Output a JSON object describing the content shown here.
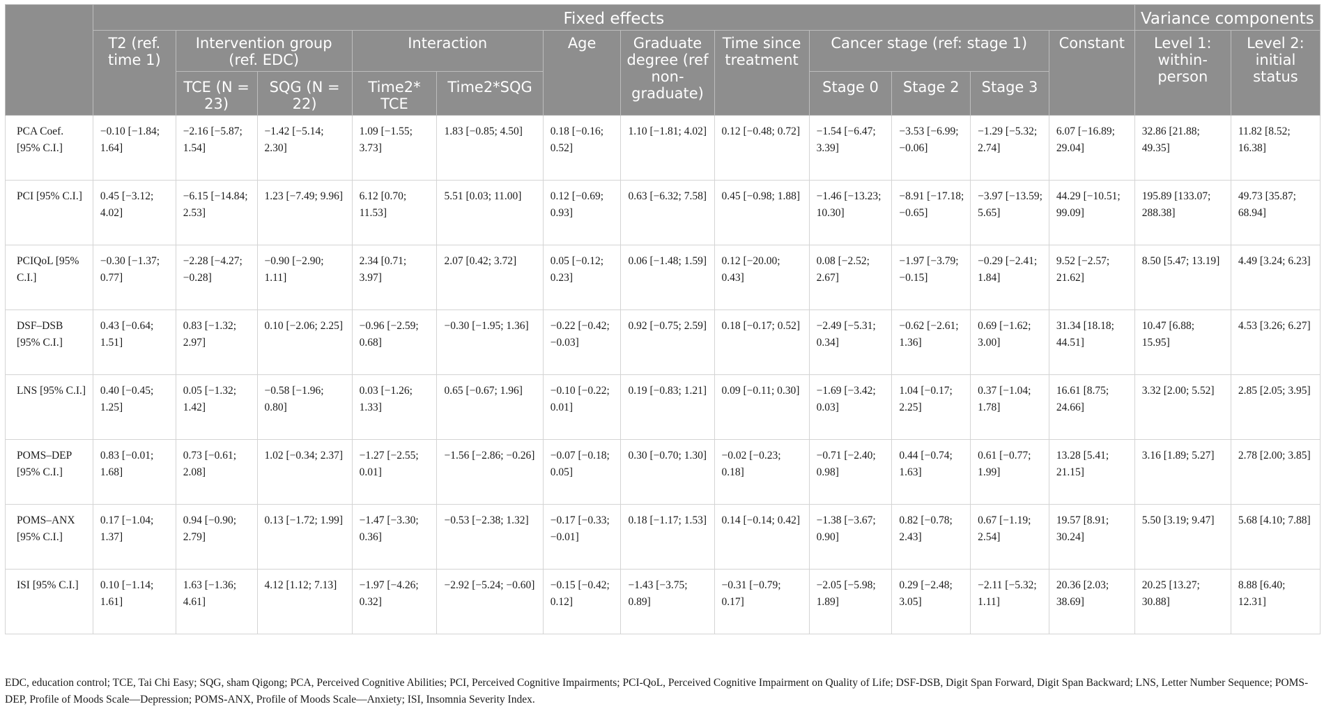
{
  "header": {
    "fixed_effects": "Fixed effects",
    "variance_components": "Variance components",
    "t2": "T2 (ref. time 1)",
    "intervention_group": "Intervention group (ref. EDC)",
    "interaction": "Interaction",
    "age": "Age",
    "graduate_degree": "Graduate degree (ref non-graduate)",
    "time_since_treatment": "Time since treatment",
    "cancer_stage": "Cancer stage (ref: stage 1)",
    "constant": "Constant",
    "level1": "Level 1: within-person",
    "level2": "Level 2: initial status",
    "tce": "TCE (N = 23)",
    "sqg": "SQG (N = 22)",
    "time2_tce": "Time2* TCE",
    "time2_sqg": "Time2*SQG",
    "stage0": "Stage 0",
    "stage2": "Stage 2",
    "stage3": "Stage 3"
  },
  "rows": [
    {
      "label": "PCA Coef. [95% C.I.]",
      "cells": [
        "−0.10 [−1.84; 1.64]",
        "−2.16 [−5.87; 1.54]",
        "−1.42 [−5.14; 2.30]",
        "1.09 [−1.55; 3.73]",
        "1.83 [−0.85; 4.50]",
        "0.18 [−0.16; 0.52]",
        "1.10 [−1.81; 4.02]",
        "0.12 [−0.48; 0.72]",
        "−1.54 [−6.47; 3.39]",
        "−3.53 [−6.99; −0.06]",
        "−1.29 [−5.32; 2.74]",
        "6.07 [−16.89; 29.04]",
        "32.86 [21.88; 49.35]",
        "11.82 [8.52; 16.38]"
      ]
    },
    {
      "label": "PCI [95% C.I.]",
      "cells": [
        "0.45 [−3.12; 4.02]",
        "−6.15 [−14.84; 2.53]",
        "1.23 [−7.49; 9.96]",
        "6.12 [0.70; 11.53]",
        "5.51 [0.03; 11.00]",
        "0.12 [−0.69; 0.93]",
        "0.63 [−6.32; 7.58]",
        "0.45 [−0.98; 1.88]",
        "−1.46 [−13.23; 10.30]",
        "−8.91 [−17.18; −0.65]",
        "−3.97 [−13.59; 5.65]",
        "44.29 [−10.51; 99.09]",
        "195.89 [133.07; 288.38]",
        "49.73 [35.87; 68.94]"
      ]
    },
    {
      "label": "PCIQoL [95% C.I.]",
      "cells": [
        "−0.30 [−1.37; 0.77]",
        "−2.28 [−4.27; −0.28]",
        "−0.90 [−2.90; 1.11]",
        "2.34 [0.71; 3.97]",
        "2.07 [0.42; 3.72]",
        "0.05 [−0.12; 0.23]",
        "0.06 [−1.48; 1.59]",
        "0.12 [−20.00; 0.43]",
        "0.08 [−2.52; 2.67]",
        "−1.97 [−3.79; −0.15]",
        "−0.29 [−2.41; 1.84]",
        "9.52 [−2.57; 21.62]",
        "8.50 [5.47; 13.19]",
        "4.49 [3.24; 6.23]"
      ]
    },
    {
      "label": "DSF–DSB [95% C.I.]",
      "cells": [
        "0.43 [−0.64; 1.51]",
        "0.83 [−1.32; 2.97]",
        "0.10 [−2.06; 2.25]",
        "−0.96 [−2.59; 0.68]",
        "−0.30 [−1.95; 1.36]",
        "−0.22 [−0.42; −0.03]",
        "0.92 [−0.75; 2.59]",
        "0.18 [−0.17; 0.52]",
        "−2.49 [−5.31; 0.34]",
        "−0.62 [−2.61; 1.36]",
        "0.69 [−1.62; 3.00]",
        "31.34 [18.18; 44.51]",
        "10.47 [6.88; 15.95]",
        "4.53 [3.26; 6.27]"
      ]
    },
    {
      "label": "LNS [95% C.I.]",
      "cells": [
        "0.40 [−0.45; 1.25]",
        "0.05 [−1.32; 1.42]",
        "−0.58 [−1.96; 0.80]",
        "0.03 [−1.26; 1.33]",
        "0.65 [−0.67; 1.96]",
        "−0.10 [−0.22; 0.01]",
        "0.19 [−0.83; 1.21]",
        "0.09 [−0.11; 0.30]",
        "−1.69 [−3.42; 0.03]",
        "1.04 [−0.17; 2.25]",
        "0.37 [−1.04; 1.78]",
        "16.61 [8.75; 24.66]",
        "3.32 [2.00; 5.52]",
        "2.85 [2.05; 3.95]"
      ]
    },
    {
      "label": "POMS–DEP [95% C.I.]",
      "cells": [
        "0.83 [−0.01; 1.68]",
        "0.73 [−0.61; 2.08]",
        "1.02 [−0.34; 2.37]",
        "−1.27 [−2.55; 0.01]",
        "−1.56 [−2.86; −0.26]",
        "−0.07 [−0.18; 0.05]",
        "0.30 [−0.70; 1.30]",
        "−0.02 [−0.23; 0.18]",
        "−0.71 [−2.40; 0.98]",
        "0.44 [−0.74; 1.63]",
        "0.61 [−0.77; 1.99]",
        "13.28 [5.41; 21.15]",
        "3.16 [1.89; 5.27]",
        "2.78 [2.00; 3.85]"
      ]
    },
    {
      "label": "POMS–ANX [95% C.I.]",
      "cells": [
        "0.17 [−1.04; 1.37]",
        "0.94 [−0.90; 2.79]",
        "0.13 [−1.72; 1.99]",
        "−1.47 [−3.30; 0.36]",
        "−0.53 [−2.38; 1.32]",
        "−0.17 [−0.33; −0.01]",
        "0.18 [−1.17; 1.53]",
        "0.14 [−0.14; 0.42]",
        "−1.38 [−3.67; 0.90]",
        "0.82 [−0.78; 2.43]",
        "0.67 [−1.19; 2.54]",
        "19.57 [8.91; 30.24]",
        "5.50 [3.19; 9.47]",
        "5.68 [4.10; 7.88]"
      ]
    },
    {
      "label": "ISI [95% C.I.]",
      "cells": [
        "0.10 [−1.14; 1.61]",
        "1.63 [−1.36; 4.61]",
        "4.12 [1.12; 7.13]",
        "−1.97 [−4.26; 0.32]",
        "−2.92 [−5.24; −0.60]",
        "−0.15 [−0.42; 0.12]",
        "−1.43 [−3.75; 0.89]",
        "−0.31 [−0.79; 0.17]",
        "−2.05 [−5.98; 1.89]",
        "0.29 [−2.48; 3.05]",
        "−2.11 [−5.32; 1.11]",
        "20.36 [2.03; 38.69]",
        "20.25 [13.27; 30.88]",
        "8.88 [6.40; 12.31]"
      ]
    }
  ],
  "footnote": "EDC, education control; TCE, Tai Chi Easy; SQG, sham Qigong; PCA, Perceived Cognitive Abilities; PCI, Perceived Cognitive Impairments; PCI-QoL, Perceived Cognitive Impairment on Quality of Life; DSF-DSB, Digit Span Forward, Digit Span Backward; LNS, Letter Number Sequence; POMS-DEP, Profile of Moods Scale—Depression; POMS-ANX, Profile of Moods Scale—Anxiety; ISI, Insomnia Severity Index."
}
